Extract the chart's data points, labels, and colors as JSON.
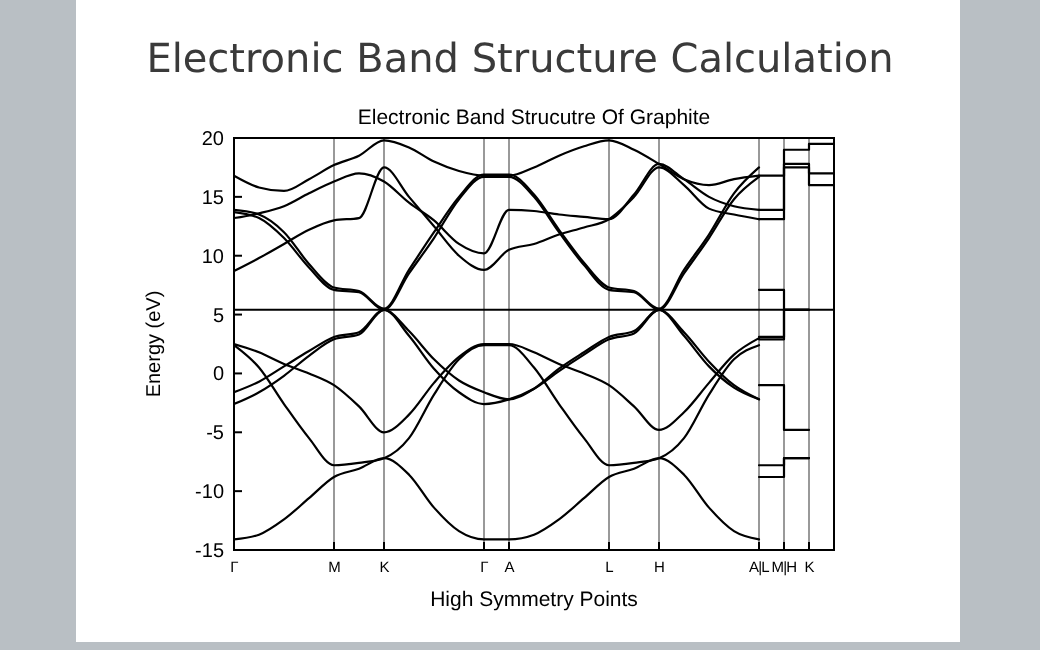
{
  "chart_data": {
    "type": "line",
    "title": "Electronic Band Structure Calculation",
    "subtitle": "Electronic Band Strucutre Of Graphite",
    "xlabel": "High Symmetry Points",
    "ylabel": "Energy (eV)",
    "categories": [
      "Γ",
      null,
      null,
      null,
      "M",
      null,
      "K",
      null,
      null,
      null,
      "Γ",
      "A",
      null,
      null,
      null,
      "L",
      null,
      "H",
      null,
      null,
      null,
      "A|L",
      "M|H",
      "K",
      null
    ],
    "ylim": [
      -15,
      20
    ],
    "yticks": [
      -15,
      -10,
      -5,
      0,
      5,
      10,
      15,
      20
    ],
    "grid": "x",
    "marker": "none",
    "line_style": "solid",
    "ref_lines": [
      {
        "axis": "y",
        "value": 5.4,
        "color": "#000000"
      }
    ],
    "series": [
      {
        "color": "#000000",
        "values": [
          -14.1,
          -13.7,
          -12.4,
          -10.6,
          -8.8,
          -8.1,
          -7.2,
          -8.6,
          -11.4,
          -13.4,
          -14.1,
          -14.1,
          -13.7,
          -12.4,
          -10.6,
          -8.8,
          -8.1,
          -7.2,
          -8.6,
          -11.4,
          -13.4,
          -14.1,
          null,
          null,
          null
        ]
      },
      {
        "color": "#000000",
        "type": "step",
        "values": [
          null,
          null,
          null,
          null,
          null,
          null,
          null,
          null,
          null,
          null,
          null,
          null,
          null,
          null,
          null,
          null,
          null,
          null,
          null,
          null,
          null,
          -8.8,
          -7.2,
          -7.2,
          null
        ]
      },
      {
        "color": "#000000",
        "values": [
          2.4,
          0.5,
          -2.6,
          -5.5,
          -7.8,
          -7.6,
          -7.2,
          -5.5,
          -1.8,
          1.2,
          2.4,
          2.4,
          0.5,
          -2.6,
          -5.5,
          -7.8,
          -7.6,
          -7.2,
          -5.5,
          -1.8,
          1.2,
          2.4,
          null,
          null,
          null
        ]
      },
      {
        "color": "#000000",
        "type": "step",
        "values": [
          null,
          null,
          null,
          null,
          null,
          null,
          null,
          null,
          null,
          null,
          null,
          null,
          null,
          null,
          null,
          null,
          null,
          null,
          null,
          null,
          null,
          -7.8,
          -7.2,
          -7.2,
          null
        ]
      },
      {
        "color": "#000000",
        "values": [
          2.5,
          1.8,
          0.8,
          0,
          -1.0,
          -2.8,
          -5.0,
          -3.5,
          -0.8,
          1.4,
          2.5,
          2.5,
          1.8,
          0.8,
          0,
          -1.0,
          -2.8,
          -4.8,
          -3.3,
          -0.8,
          1.6,
          3.0,
          null,
          null,
          null
        ]
      },
      {
        "color": "#000000",
        "type": "step",
        "values": [
          null,
          null,
          null,
          null,
          null,
          null,
          null,
          null,
          null,
          null,
          null,
          null,
          null,
          null,
          null,
          null,
          null,
          null,
          null,
          null,
          null,
          -1.0,
          -4.8,
          -4.8,
          null
        ]
      },
      {
        "color": "#000000",
        "values": [
          -1.6,
          -0.7,
          0.6,
          1.9,
          3.1,
          3.5,
          5.4,
          3.6,
          1.2,
          -0.6,
          -1.6,
          -2.2,
          -1.3,
          0.4,
          1.8,
          3.1,
          3.6,
          5.4,
          3.5,
          1.0,
          -1.0,
          -2.2,
          null,
          null,
          null
        ]
      },
      {
        "color": "#000000",
        "type": "step",
        "values": [
          null,
          null,
          null,
          null,
          null,
          null,
          null,
          null,
          null,
          null,
          null,
          null,
          null,
          null,
          null,
          null,
          null,
          null,
          null,
          null,
          null,
          3.1,
          5.4,
          5.4,
          null
        ]
      },
      {
        "color": "#000000",
        "values": [
          -2.6,
          -1.6,
          -0.2,
          1.5,
          2.9,
          3.3,
          5.4,
          3.2,
          0.4,
          -1.6,
          -2.6,
          -2.2,
          -1.3,
          0.2,
          1.6,
          2.9,
          3.4,
          5.4,
          3.2,
          0.6,
          -1.2,
          -2.2,
          null,
          null,
          null
        ]
      },
      {
        "color": "#000000",
        "type": "step",
        "values": [
          null,
          null,
          null,
          null,
          null,
          null,
          null,
          null,
          null,
          null,
          null,
          null,
          null,
          null,
          null,
          null,
          null,
          null,
          null,
          null,
          null,
          2.9,
          5.4,
          5.4,
          null
        ]
      },
      {
        "color": "#000000",
        "values": [
          13.7,
          13.2,
          11.5,
          9,
          7.1,
          6.9,
          5.4,
          8.5,
          11.5,
          14.8,
          16.7,
          16.7,
          15,
          12,
          9.2,
          7.1,
          6.9,
          5.4,
          8.5,
          11.5,
          14.8,
          16.7,
          null,
          null,
          null
        ]
      },
      {
        "color": "#000000",
        "type": "step",
        "values": [
          null,
          null,
          null,
          null,
          null,
          null,
          null,
          null,
          null,
          null,
          null,
          null,
          null,
          null,
          null,
          null,
          null,
          null,
          null,
          null,
          null,
          7.1,
          5.4,
          5.4,
          null
        ]
      },
      {
        "color": "#000000",
        "values": [
          13.9,
          13.5,
          12,
          9.3,
          7.3,
          7.0,
          5.5,
          8.8,
          12,
          15,
          16.9,
          16.9,
          15.2,
          12.2,
          9.4,
          7.3,
          7.0,
          5.5,
          8.8,
          11.8,
          15.3,
          17.5,
          null,
          null,
          null
        ]
      },
      {
        "color": "#000000",
        "values": [
          8.7,
          9.8,
          11,
          12.2,
          13.0,
          13.2,
          17.5,
          15,
          12.5,
          10,
          8.8,
          10.5,
          11,
          11.8,
          12.4,
          13.1,
          15,
          17.5,
          16,
          14,
          13.5,
          13.1,
          null,
          null,
          null
        ]
      },
      {
        "color": "#000000",
        "type": "step",
        "values": [
          null,
          null,
          null,
          null,
          null,
          null,
          null,
          null,
          null,
          null,
          null,
          null,
          null,
          null,
          null,
          null,
          null,
          null,
          null,
          null,
          null,
          13.1,
          17.5,
          16,
          16
        ]
      },
      {
        "color": "#000000",
        "values": [
          13.2,
          13.6,
          14.2,
          15.3,
          16.3,
          17,
          16.3,
          14.5,
          13,
          11,
          10.2,
          13.9,
          13.8,
          13.5,
          13.3,
          13.1,
          15.2,
          17.8,
          16.5,
          15,
          14.2,
          13.9,
          null,
          null,
          null
        ]
      },
      {
        "color": "#000000",
        "type": "step",
        "values": [
          null,
          null,
          null,
          null,
          null,
          null,
          null,
          null,
          null,
          null,
          null,
          null,
          null,
          null,
          null,
          null,
          null,
          null,
          null,
          null,
          null,
          13.9,
          17.8,
          17,
          17
        ]
      },
      {
        "color": "#000000",
        "values": [
          16.8,
          15.8,
          15.5,
          16.5,
          17.7,
          18.5,
          19.8,
          19.2,
          18,
          17.2,
          16.8,
          16.8,
          17.5,
          18.5,
          19.3,
          19.8,
          19,
          17.8,
          16.5,
          16,
          16.5,
          16.8,
          null,
          null,
          null
        ]
      },
      {
        "color": "#000000",
        "type": "step",
        "values": [
          null,
          null,
          null,
          null,
          null,
          null,
          null,
          null,
          null,
          null,
          null,
          null,
          null,
          null,
          null,
          null,
          null,
          null,
          null,
          null,
          null,
          16.8,
          19,
          19.5,
          19.5
        ]
      }
    ]
  }
}
